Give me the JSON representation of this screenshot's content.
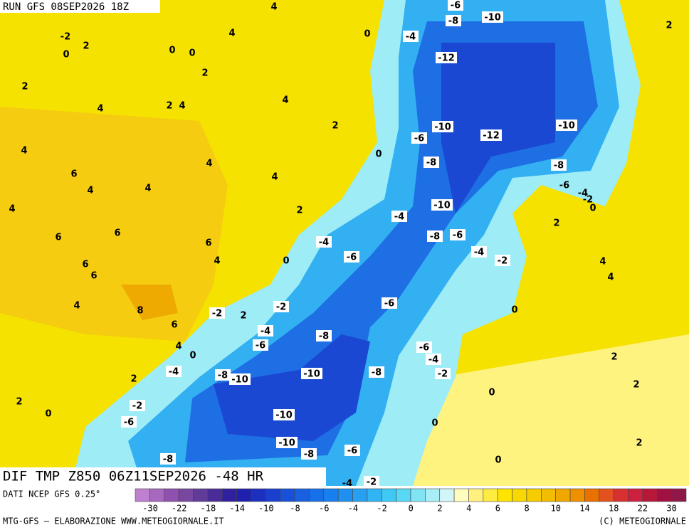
{
  "header": {
    "run": "RUN GFS 08SEP2026 18Z"
  },
  "map": {
    "title": "DIF TMP Z850 06Z11SEP2026 -48 HR",
    "labels": [
      "4",
      "-6",
      "-8",
      "-10",
      "2",
      "-2",
      "4",
      "0",
      "-4",
      "2",
      "0",
      "0",
      "0",
      "-12",
      "2",
      "2",
      "4",
      "4",
      "2",
      "4",
      "2",
      "-10",
      "-12",
      "-10",
      "4",
      "-6",
      "0",
      "6",
      "4",
      "-8",
      "-8",
      "4",
      "4",
      "4",
      "-6",
      "-4",
      "-2",
      "0",
      "4",
      "2",
      "-10",
      "-4",
      "2",
      "6",
      "6",
      "-8",
      "-6",
      "-4",
      "6",
      "-4",
      "-6",
      "0",
      "4",
      "-2",
      "6",
      "6",
      "4",
      "4",
      "4",
      "8",
      "-6",
      "-2",
      "-2",
      "2",
      "0",
      "6",
      "-4",
      "-8",
      "4",
      "-6",
      "-6",
      "0",
      "-4",
      "2",
      "-4",
      "-2",
      "-8",
      "-10",
      "-10",
      "-8",
      "2",
      "2",
      "0",
      "2",
      "-2",
      "0",
      "-10",
      "-6",
      "0",
      "2",
      "-10",
      "-8",
      "-6",
      "-8",
      "0",
      "-2",
      "-4"
    ]
  },
  "colorbar": {
    "source": "DATI NCEP GFS 0.25°",
    "ticks": [
      -30,
      -22,
      -18,
      -14,
      -10,
      -8,
      -6,
      -4,
      -2,
      0,
      2,
      4,
      6,
      8,
      10,
      14,
      18,
      22,
      30
    ],
    "colors": [
      "#c080d0",
      "#a868c0",
      "#9050b0",
      "#7848a0",
      "#603c98",
      "#4a2c98",
      "#3020a0",
      "#2020b0",
      "#1c30c0",
      "#1a40d0",
      "#1850d8",
      "#1860e0",
      "#1870e8",
      "#1880ee",
      "#2090f0",
      "#28a0f2",
      "#30b4f4",
      "#40c8f4",
      "#58d8f4",
      "#80e4f4",
      "#a8eef6",
      "#d0f6f8",
      "#fffcc0",
      "#fff080",
      "#ffec40",
      "#ffe400",
      "#f8d800",
      "#f5cc00",
      "#f2bc00",
      "#f0a800",
      "#ee9000",
      "#ea7000",
      "#e45020",
      "#d83030",
      "#cc2040",
      "#b81838",
      "#a01040",
      "#901848"
    ]
  },
  "footer": {
    "left": "MTG-GFS – ELABORAZIONE WWW.METEOGIORNALE.IT",
    "right": "(C) METEOGIORNALE"
  }
}
